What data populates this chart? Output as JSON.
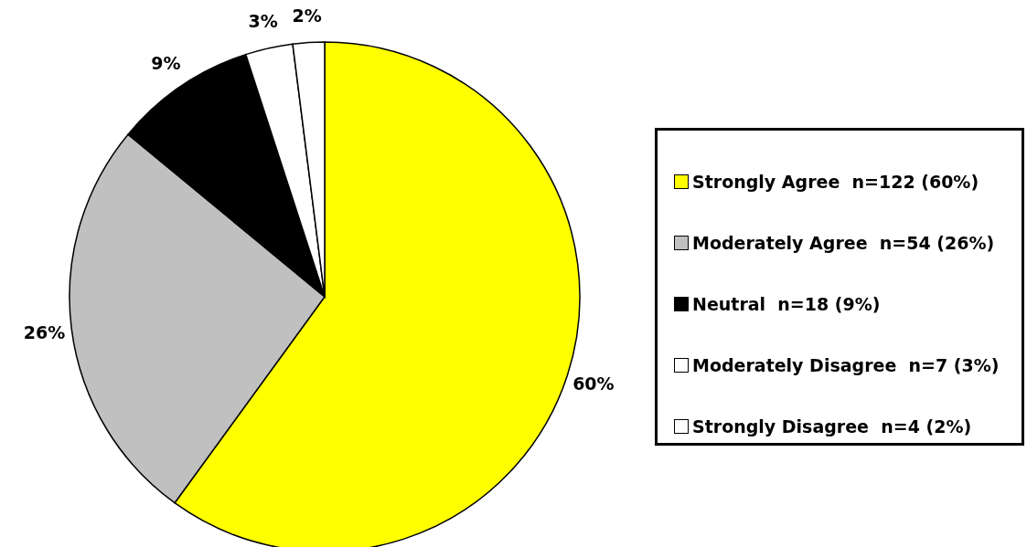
{
  "chart_data": {
    "type": "pie",
    "categories": [
      "Strongly Agree  n=122 (60%)",
      "Moderately Agree  n=54 (26%)",
      "Neutral  n=18 (9%)",
      "Moderately Disagree  n=7 (3%)",
      "Strongly Disagree  n=4 (2%)"
    ],
    "values": [
      60,
      26,
      9,
      3,
      2
    ],
    "value_labels": [
      "60%",
      "26%",
      "9%",
      "3%",
      "2%"
    ],
    "colors": [
      "#ffff00",
      "#c0c0c0",
      "#000000",
      "#ffffff",
      "#ffffff"
    ],
    "legend": "right"
  }
}
